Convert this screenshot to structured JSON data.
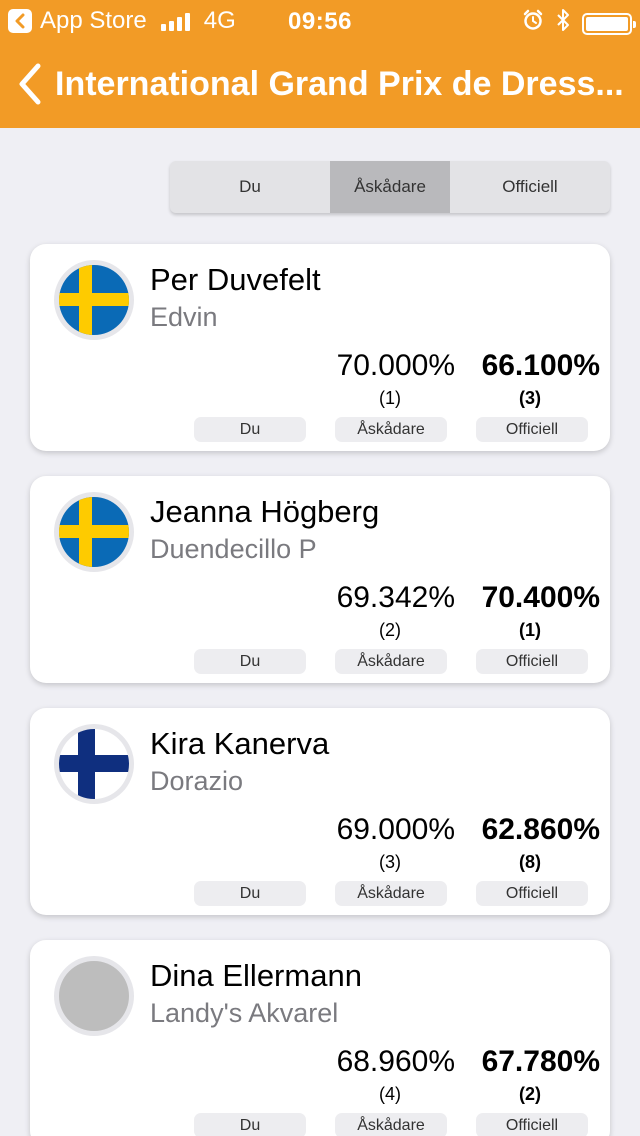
{
  "status_bar": {
    "back_app_label": "App Store",
    "network": "4G",
    "time": "09:56",
    "icons": [
      "alarm-icon",
      "bluetooth-icon",
      "battery-icon"
    ]
  },
  "nav": {
    "title": "International Grand Prix de Dress...",
    "back_icon": "chevron-left-icon",
    "color": "#f29b26"
  },
  "segmented_control": {
    "options": [
      "Du",
      "Åskådare",
      "Officiell"
    ],
    "selected": "Åskådare"
  },
  "riders": [
    {
      "rider": "Per Duvefelt",
      "horse": "Edvin",
      "flag": "sweden",
      "spectator_score": "70.000%",
      "official_score": "66.100%",
      "spectator_rank": "(1)",
      "official_rank": "(3)",
      "buttons": [
        "Du",
        "Åskådare",
        "Officiell"
      ]
    },
    {
      "rider": "Jeanna Högberg",
      "horse": "Duendecillo P",
      "flag": "sweden",
      "spectator_score": "69.342%",
      "official_score": "70.400%",
      "spectator_rank": "(2)",
      "official_rank": "(1)",
      "buttons": [
        "Du",
        "Åskådare",
        "Officiell"
      ]
    },
    {
      "rider": "Kira Kanerva",
      "horse": "Dorazio",
      "flag": "finland",
      "spectator_score": "69.000%",
      "official_score": "62.860%",
      "spectator_rank": "(3)",
      "official_rank": "(8)",
      "buttons": [
        "Du",
        "Åskådare",
        "Officiell"
      ]
    },
    {
      "rider": "Dina Ellermann",
      "horse": "Landy's Akvarel",
      "flag": "none",
      "spectator_score": "68.960%",
      "official_score": "67.780%",
      "spectator_rank": "(4)",
      "official_rank": "(2)",
      "buttons": [
        "Du",
        "Åskådare",
        "Officiell"
      ]
    }
  ],
  "colors": {
    "accent": "#f29b26",
    "sweden_blue": "#0a6ab6",
    "sweden_yellow": "#fecb00",
    "finland_blue": "#0f2f7f",
    "placeholder_gray": "#bdbdbd"
  }
}
